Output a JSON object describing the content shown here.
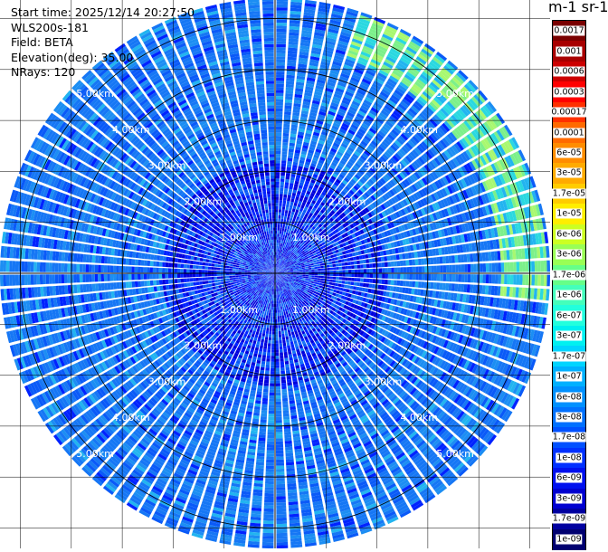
{
  "header": {
    "start_time": "Start time: 2025/12/14 20:27:50",
    "instrument": "WLS200s-181",
    "field": "Field: BETA",
    "elevation": "Elevation(deg): 35.00",
    "nrays": "NRays: 120"
  },
  "colorbar": {
    "units_label": "m-1 sr-1",
    "ticks": [
      "0.0017",
      "0.001",
      "0.0006",
      "0.0003",
      "0.00017",
      "0.0001",
      "6e-05",
      "3e-05",
      "1.7e-05",
      "1e-05",
      "6e-06",
      "3e-06",
      "1.7e-06",
      "1e-06",
      "6e-07",
      "3e-07",
      "1.7e-07",
      "1e-07",
      "6e-08",
      "3e-08",
      "1.7e-08",
      "1e-08",
      "6e-09",
      "3e-09",
      "1.7e-09",
      "1e-09"
    ],
    "colors": [
      "#7a0000",
      "#a80000",
      "#cc0000",
      "#ff0000",
      "#ff3000",
      "#ff6a00",
      "#ff8c00",
      "#ffaa00",
      "#ffcc00",
      "#ffee00",
      "#ccff22",
      "#99ff55",
      "#66ff88",
      "#44ffbb",
      "#22ffdd",
      "#00f0f0",
      "#00d4ff",
      "#00b0ff",
      "#0090ff",
      "#0070ff",
      "#0050ff",
      "#0030ff",
      "#0010ee",
      "#0000d0",
      "#0000a0",
      "#000070"
    ]
  },
  "chart_data": {
    "type": "ppi",
    "field": "BETA",
    "nrays": 120,
    "elevation_deg": 35.0,
    "max_range_km": 5.4,
    "range_ring_labels": [
      "1.00km",
      "2.00km",
      "3.00km",
      "4.00km",
      "5.00km"
    ],
    "range_rings_km": [
      1,
      2,
      3,
      4,
      5
    ],
    "grid_lines": "azimuth 0/90/180/270 with square grid",
    "background_beta": "3e-08",
    "enhanced_band": {
      "azimuth_deg": [
        15,
        95
      ],
      "range_km": [
        4.4,
        5.3
      ],
      "beta": "1.7e-06"
    }
  }
}
